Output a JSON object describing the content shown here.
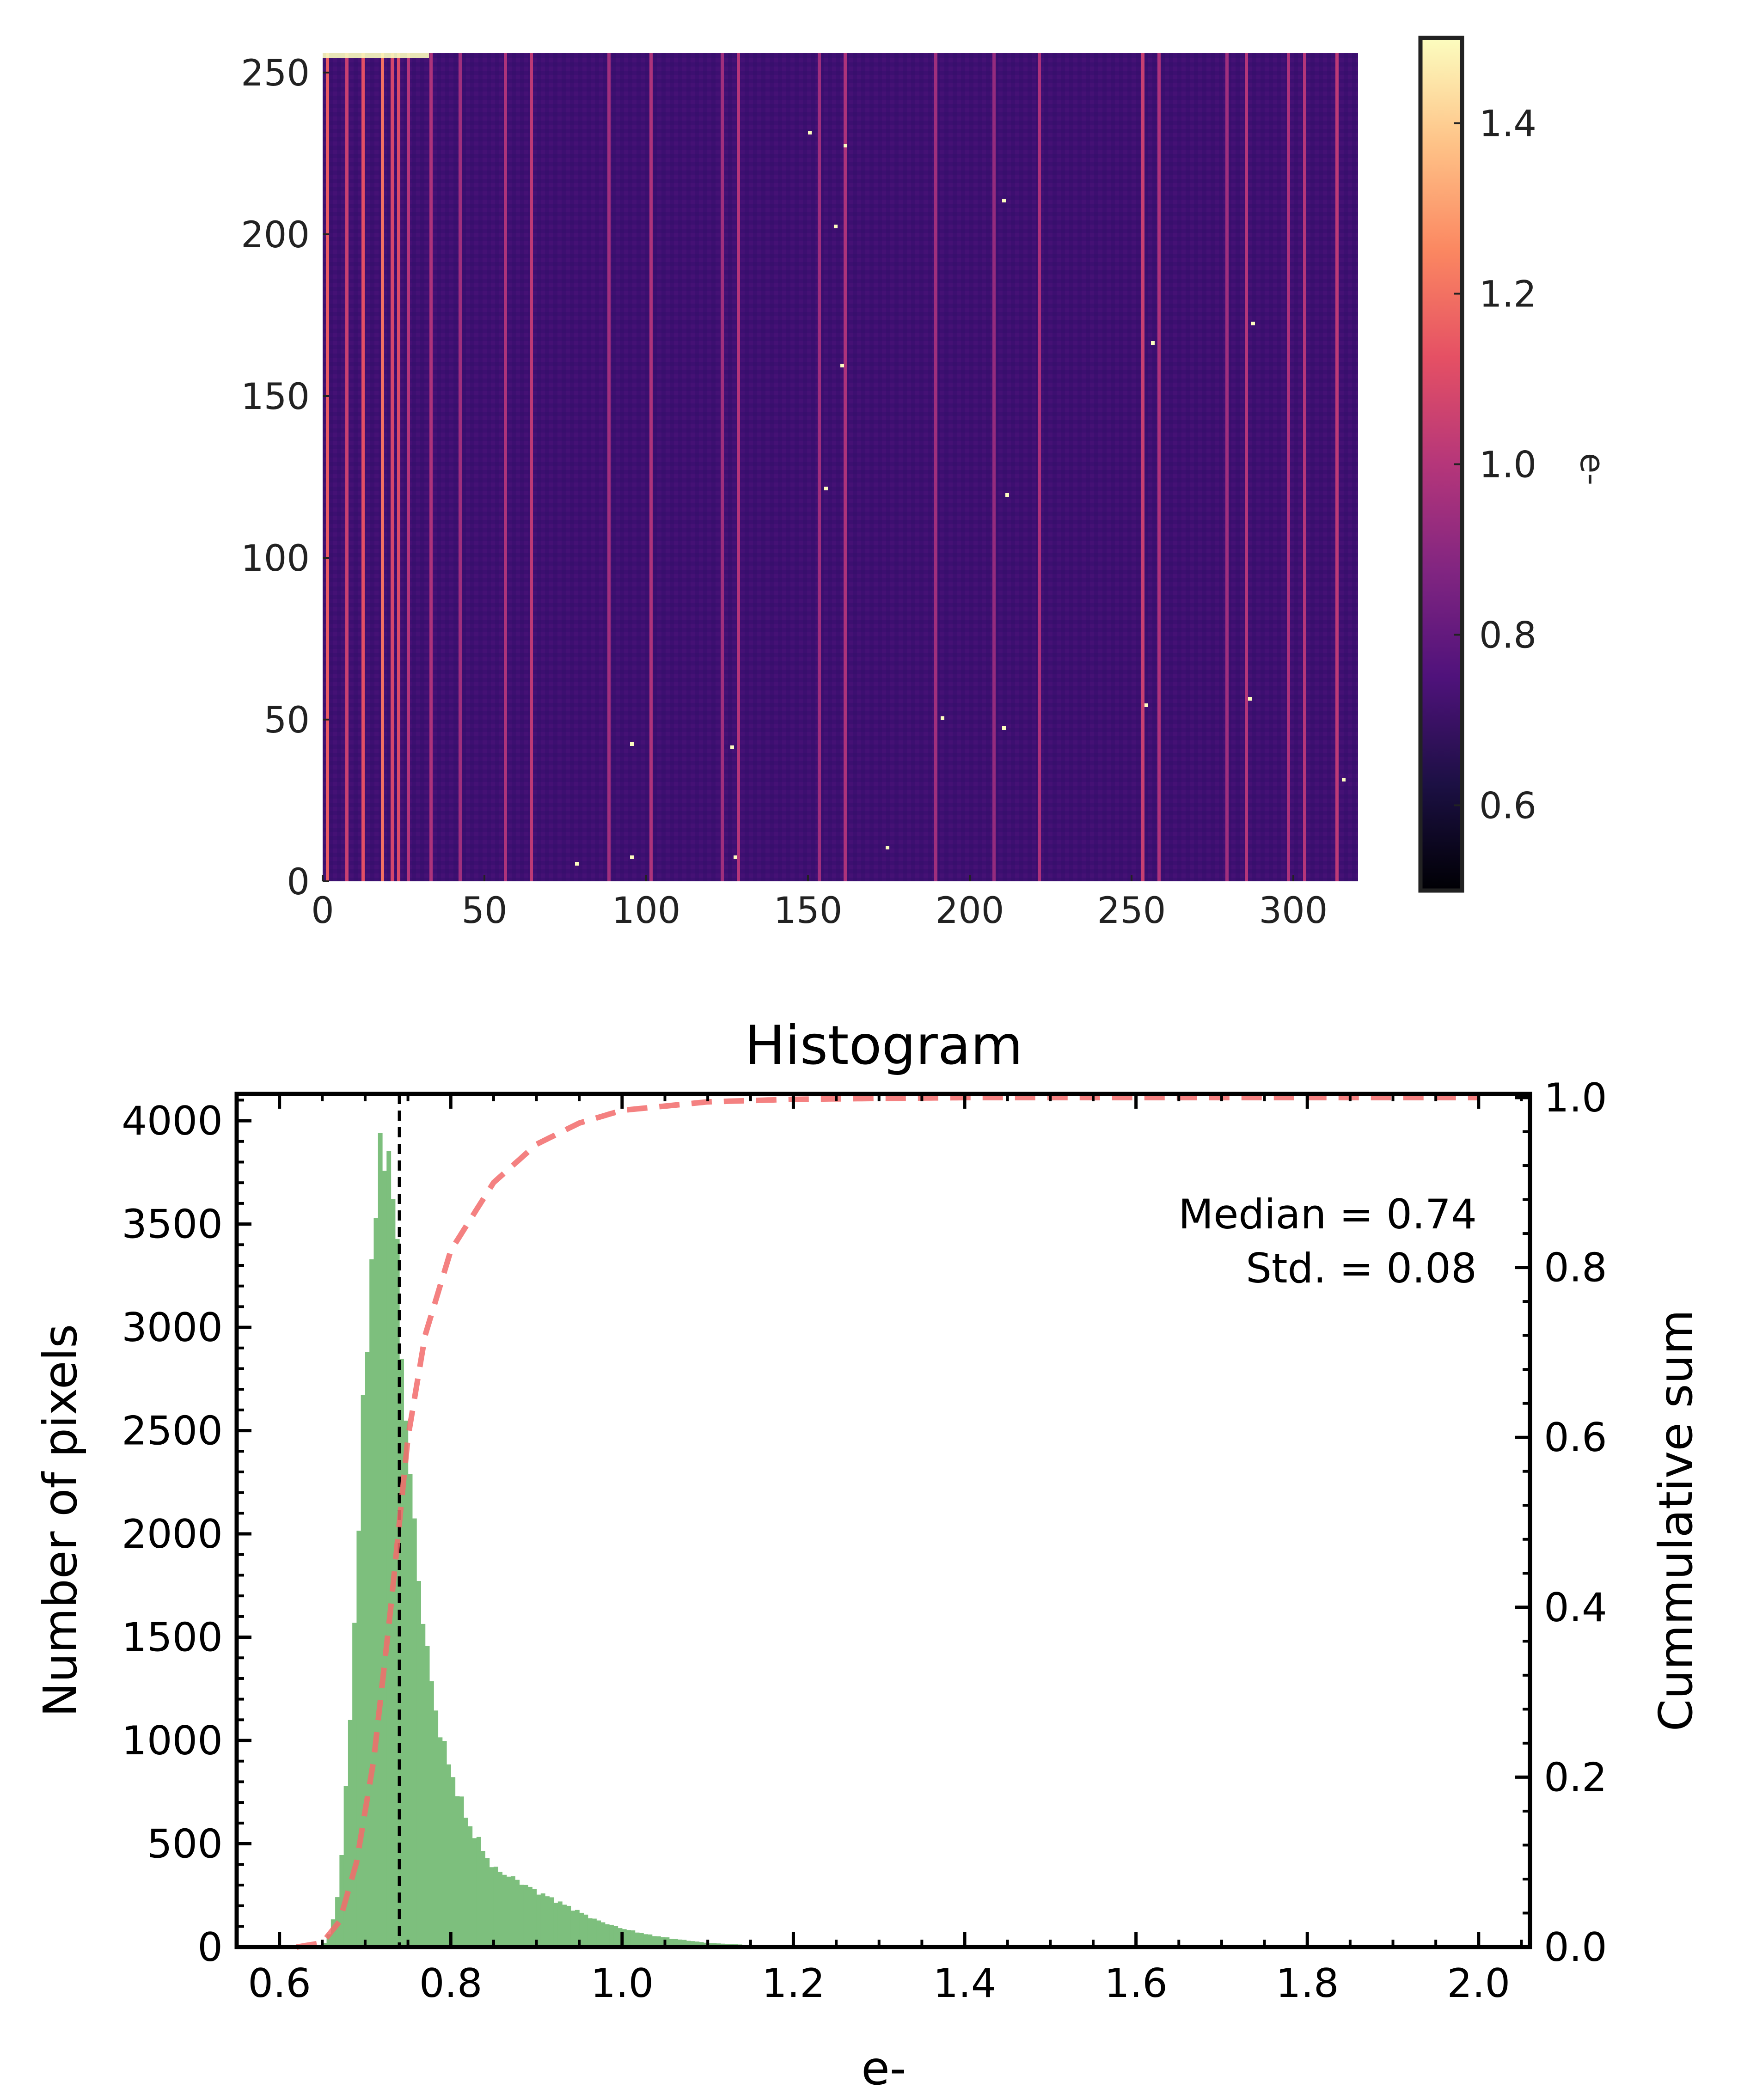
{
  "chart_data": [
    {
      "type": "heatmap",
      "title": "",
      "xlabel": "",
      "ylabel": "",
      "xlim": [
        0,
        320
      ],
      "ylim": [
        0,
        256
      ],
      "x_ticks": [
        "0",
        "50",
        "100",
        "150",
        "200",
        "250",
        "300"
      ],
      "y_ticks": [
        "0",
        "50",
        "100",
        "150",
        "200",
        "250"
      ],
      "colormap": "magma",
      "background_level": 0.74,
      "bright_columns": [
        {
          "x": 1,
          "value": 1.15
        },
        {
          "x": 7,
          "value": 1.05
        },
        {
          "x": 12,
          "value": 1.12
        },
        {
          "x": 18,
          "value": 1.2
        },
        {
          "x": 21,
          "value": 1.08
        },
        {
          "x": 23,
          "value": 1.1
        },
        {
          "x": 26,
          "value": 1.0
        },
        {
          "x": 33,
          "value": 0.98
        },
        {
          "x": 42,
          "value": 0.95
        },
        {
          "x": 56,
          "value": 0.98
        },
        {
          "x": 64,
          "value": 1.02
        },
        {
          "x": 88,
          "value": 0.95
        },
        {
          "x": 101,
          "value": 0.98
        },
        {
          "x": 123,
          "value": 0.95
        },
        {
          "x": 128,
          "value": 1.0
        },
        {
          "x": 153,
          "value": 0.95
        },
        {
          "x": 161,
          "value": 0.98
        },
        {
          "x": 189,
          "value": 0.95
        },
        {
          "x": 207,
          "value": 0.92
        },
        {
          "x": 221,
          "value": 0.98
        },
        {
          "x": 253,
          "value": 1.05
        },
        {
          "x": 258,
          "value": 0.98
        },
        {
          "x": 279,
          "value": 0.95
        },
        {
          "x": 285,
          "value": 1.0
        },
        {
          "x": 298,
          "value": 0.98
        },
        {
          "x": 303,
          "value": 1.0
        },
        {
          "x": 313,
          "value": 1.02
        }
      ],
      "hot_pixels": [
        {
          "x": 78,
          "y": 6
        },
        {
          "x": 95,
          "y": 8
        },
        {
          "x": 127,
          "y": 8
        },
        {
          "x": 174,
          "y": 11
        },
        {
          "x": 95,
          "y": 43
        },
        {
          "x": 126,
          "y": 42
        },
        {
          "x": 191,
          "y": 51
        },
        {
          "x": 210,
          "y": 48
        },
        {
          "x": 254,
          "y": 55
        },
        {
          "x": 286,
          "y": 57
        },
        {
          "x": 315,
          "y": 32
        },
        {
          "x": 155,
          "y": 122
        },
        {
          "x": 211,
          "y": 120
        },
        {
          "x": 160,
          "y": 160
        },
        {
          "x": 256,
          "y": 167
        },
        {
          "x": 287,
          "y": 173
        },
        {
          "x": 158,
          "y": 203
        },
        {
          "x": 210,
          "y": 211
        },
        {
          "x": 150,
          "y": 232
        },
        {
          "x": 161,
          "y": 228
        }
      ],
      "colorbar": {
        "label": "e-",
        "range": [
          0.5,
          1.5
        ],
        "ticks": [
          "0.6",
          "0.8",
          "1.0",
          "1.2",
          "1.4"
        ],
        "colors": [
          "#000004",
          "#1c1044",
          "#4f127b",
          "#812581",
          "#b5367a",
          "#e55064",
          "#fb8761",
          "#fec287",
          "#fcfdbf"
        ]
      }
    },
    {
      "type": "bar",
      "title": "Histogram",
      "xlabel": "e-",
      "ylabel": "Number of pixels",
      "y2label": "Cummulative sum",
      "xlim": [
        0.55,
        2.06
      ],
      "ylim": [
        0,
        4130
      ],
      "y2lim": [
        0,
        1.0
      ],
      "x_ticks": [
        "0.6",
        "0.8",
        "1.0",
        "1.2",
        "1.4",
        "1.6",
        "1.8",
        "2.0"
      ],
      "y_ticks": [
        "0",
        "500",
        "1000",
        "1500",
        "2000",
        "2500",
        "3000",
        "3500",
        "4000"
      ],
      "y2_ticks": [
        "0.0",
        "0.2",
        "0.4",
        "0.6",
        "0.8",
        "1.0"
      ],
      "bar_color": "#7dbf7d",
      "bin_width": 0.005,
      "series": [
        {
          "name": "pixel counts",
          "x": [
            0.65,
            0.66,
            0.67,
            0.68,
            0.69,
            0.7,
            0.71,
            0.72,
            0.725,
            0.73,
            0.735,
            0.74,
            0.75,
            0.76,
            0.77,
            0.78,
            0.79,
            0.8,
            0.81,
            0.82,
            0.83,
            0.84,
            0.85,
            0.87,
            0.9,
            0.93,
            0.95,
            0.97,
            1.0,
            1.03,
            1.06,
            1.1,
            1.15,
            1.2
          ],
          "values": [
            0,
            80,
            300,
            900,
            1800,
            2800,
            3500,
            3850,
            3920,
            3800,
            3500,
            3100,
            2400,
            1900,
            1500,
            1200,
            1000,
            850,
            730,
            600,
            530,
            450,
            380,
            340,
            270,
            210,
            170,
            130,
            90,
            60,
            40,
            20,
            10,
            0
          ]
        },
        {
          "name": "cumulative sum",
          "x": [
            0.62,
            0.65,
            0.67,
            0.69,
            0.71,
            0.73,
            0.74,
            0.75,
            0.77,
            0.8,
            0.85,
            0.9,
            0.95,
            1.0,
            1.1,
            1.2,
            1.4,
            1.7,
            2.0
          ],
          "values": [
            0.0,
            0.005,
            0.03,
            0.1,
            0.22,
            0.4,
            0.5,
            0.6,
            0.72,
            0.82,
            0.9,
            0.945,
            0.97,
            0.985,
            0.995,
            0.998,
            1.0,
            1.0,
            1.0
          ]
        }
      ],
      "median_line": 0.74,
      "annotations": [
        "Median = 0.74",
        "Std. = 0.08"
      ]
    }
  ]
}
